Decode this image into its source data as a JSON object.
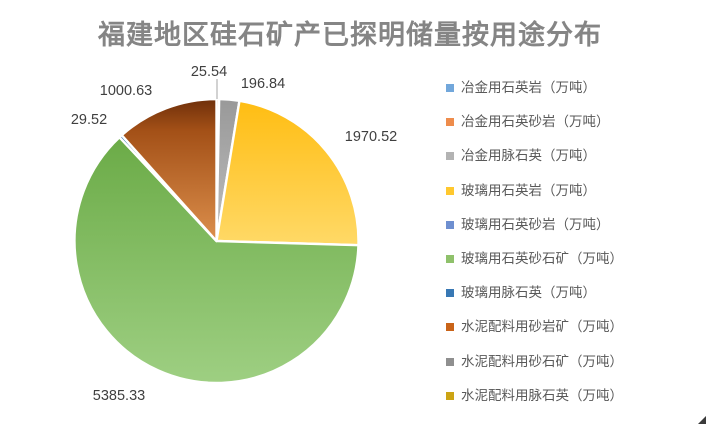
{
  "chart": {
    "title": "福建地区硅石矿产已探明储量按用途分布"
  },
  "chart_data": {
    "type": "pie",
    "title": "福建地区硅石矿产已探明储量按用途分布",
    "legend_position": "right",
    "start_angle_deg": 0,
    "direction": "clockwise",
    "unit": "万吨",
    "categories": [
      "冶金用石英岩（万吨）",
      "冶金用石英砂岩（万吨）",
      "冶金用脉石英（万吨）",
      "玻璃用石英岩（万吨）",
      "玻璃用石英砂岩（万吨）",
      "玻璃用石英砂石矿（万吨）",
      "玻璃用脉石英（万吨）",
      "水泥配料用砂岩矿（万吨）",
      "水泥配料用砂石矿（万吨）",
      "水泥配料用脉石英（万吨）"
    ],
    "values": [
      0,
      25.54,
      196.84,
      1970.52,
      0,
      5385.33,
      29.52,
      1000.63,
      0,
      0
    ],
    "data_labels": [
      "",
      "25.54",
      "196.84",
      "1970.52",
      "",
      "5385.33",
      "29.52",
      "1000.63",
      "",
      ""
    ],
    "legend_colors": [
      "#72A7DB",
      "#EE8C4C",
      "#B3B3B3",
      "#FFC82E",
      "#6E8FD0",
      "#8FC16B",
      "#3878B4",
      "#C96318",
      "#8F8F8F",
      "#CCA414"
    ],
    "label_color": "#3f3f3f",
    "legend_text_color": "#595959",
    "title_color": "#858585",
    "slice_border_color": "#ffffff"
  }
}
